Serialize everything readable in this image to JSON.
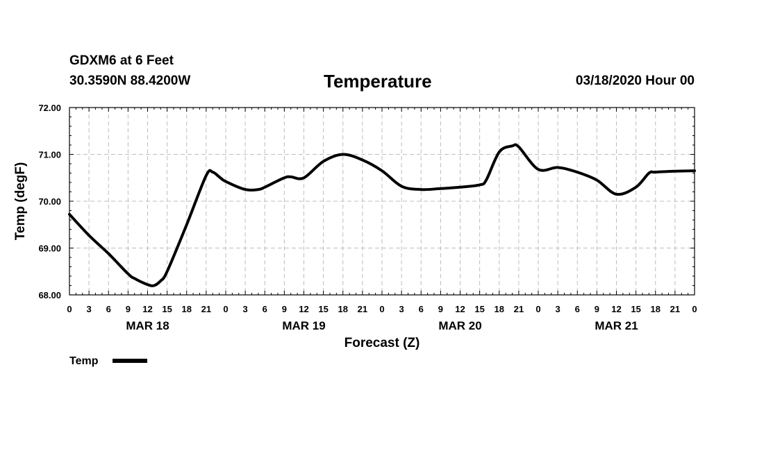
{
  "header": {
    "station": "GDXM6 at 6 Feet",
    "coords": "30.3590N 88.4200W",
    "title": "Temperature",
    "datetime": "03/18/2020 Hour 00"
  },
  "chart_data": {
    "type": "line",
    "title": "Temperature",
    "xlabel": "Forecast (Z)",
    "ylabel": "Temp (degF)",
    "ylim": [
      68.0,
      72.0
    ],
    "xlim_hours": [
      0,
      96
    ],
    "y_ticks": [
      "68.00",
      "69.00",
      "70.00",
      "71.00",
      "72.00"
    ],
    "y_tick_values": [
      68,
      69,
      70,
      71,
      72
    ],
    "x_tick_labels": [
      "0",
      "3",
      "6",
      "9",
      "12",
      "15",
      "18",
      "21",
      "0",
      "3",
      "6",
      "9",
      "12",
      "15",
      "18",
      "21",
      "0",
      "3",
      "6",
      "9",
      "12",
      "15",
      "18",
      "21",
      "0",
      "3",
      "6",
      "9",
      "12",
      "15",
      "18",
      "21",
      "0"
    ],
    "date_labels": [
      {
        "label": "MAR 18",
        "hour": 12
      },
      {
        "label": "MAR 19",
        "hour": 36
      },
      {
        "label": "MAR 20",
        "hour": 60
      },
      {
        "label": "MAR 21",
        "hour": 84
      }
    ],
    "grid": true,
    "legend": {
      "position": "bottom-left",
      "label": "Temp"
    },
    "series": [
      {
        "name": "Temp",
        "color": "#000000",
        "x_hours": [
          0,
          3,
          6,
          9,
          10,
          12,
          13,
          14,
          15,
          18,
          21,
          22,
          23,
          24,
          27,
          29,
          30,
          33,
          34,
          36,
          39,
          42,
          45,
          48,
          51,
          54,
          57,
          60,
          63,
          64,
          66,
          68,
          69,
          72,
          75,
          78,
          81,
          84,
          87,
          89,
          90,
          93,
          96
        ],
        "values": [
          69.72,
          69.27,
          68.88,
          68.45,
          68.35,
          68.22,
          68.2,
          68.3,
          68.5,
          69.5,
          70.55,
          70.62,
          70.52,
          70.42,
          70.25,
          70.25,
          70.3,
          70.5,
          70.52,
          70.5,
          70.85,
          71.0,
          70.88,
          70.65,
          70.32,
          70.25,
          70.27,
          70.3,
          70.35,
          70.45,
          71.05,
          71.18,
          71.16,
          70.68,
          70.72,
          70.62,
          70.45,
          70.15,
          70.3,
          70.6,
          70.62,
          70.64,
          70.65
        ]
      }
    ]
  }
}
